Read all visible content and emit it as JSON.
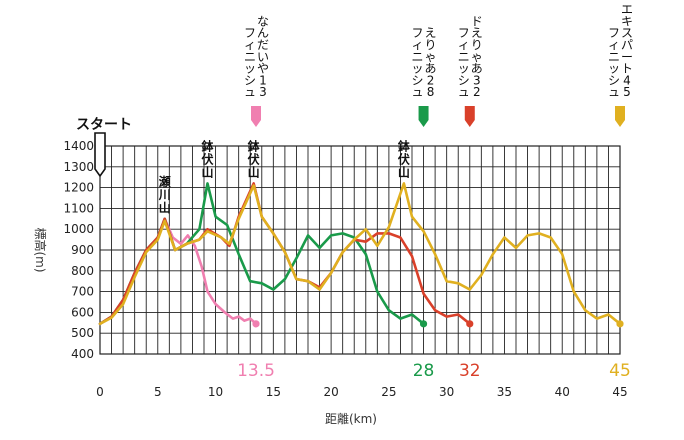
{
  "chart_data": {
    "type": "line",
    "xlabel": "距離(km)",
    "ylabel": "標高(m)",
    "xlim": [
      0,
      45
    ],
    "ylim": [
      400,
      1400
    ],
    "x_ticks": [
      "0",
      "5",
      "10",
      "15",
      "20",
      "25",
      "30",
      "35",
      "40",
      "45"
    ],
    "y_ticks": [
      "400",
      "500",
      "600",
      "700",
      "800",
      "900",
      "1000",
      "1100",
      "1200",
      "1300",
      "1400"
    ],
    "grid": true,
    "start_label": "スタート",
    "peaks": [
      {
        "label": "瀬川山",
        "x": 5.6,
        "y": 1050
      },
      {
        "label": "鉢伏山",
        "x": 9.3,
        "y": 1220
      },
      {
        "label": "鉢伏山",
        "x": 13.3,
        "y": 1220
      },
      {
        "label": "鉢伏山",
        "x": 26.3,
        "y": 1220
      }
    ],
    "series": [
      {
        "name": "なんだいや13",
        "finish_label": "フィニッシュ",
        "end_label": "13.5",
        "color": "#f07fb0",
        "points": [
          [
            0,
            545
          ],
          [
            1,
            580
          ],
          [
            2,
            660
          ],
          [
            3,
            790
          ],
          [
            4,
            900
          ],
          [
            5,
            960
          ],
          [
            5.6,
            1050
          ],
          [
            6.3,
            960
          ],
          [
            7,
            930
          ],
          [
            7.6,
            970
          ],
          [
            8.2,
            920
          ],
          [
            8.8,
            820
          ],
          [
            9.3,
            700
          ],
          [
            10,
            640
          ],
          [
            10.8,
            600
          ],
          [
            11.5,
            570
          ],
          [
            12,
            580
          ],
          [
            12.5,
            560
          ],
          [
            13,
            570
          ],
          [
            13.5,
            545
          ]
        ]
      },
      {
        "name": "えりゃあ28",
        "finish_label": "フィニッシュ",
        "end_label": "28",
        "color": "#1a9a4a",
        "points": [
          [
            0,
            545
          ],
          [
            1,
            580
          ],
          [
            2,
            660
          ],
          [
            3,
            790
          ],
          [
            4,
            900
          ],
          [
            5,
            960
          ],
          [
            5.6,
            1050
          ],
          [
            6.5,
            900
          ],
          [
            7.5,
            930
          ],
          [
            8.6,
            1000
          ],
          [
            9.3,
            1220
          ],
          [
            10,
            1060
          ],
          [
            11,
            1020
          ],
          [
            12,
            880
          ],
          [
            13,
            750
          ],
          [
            14,
            740
          ],
          [
            15,
            710
          ],
          [
            16,
            760
          ],
          [
            17,
            860
          ],
          [
            18,
            970
          ],
          [
            19,
            910
          ],
          [
            20,
            970
          ],
          [
            21,
            980
          ],
          [
            22,
            960
          ],
          [
            23,
            880
          ],
          [
            24,
            700
          ],
          [
            25,
            610
          ],
          [
            26,
            570
          ],
          [
            27,
            590
          ],
          [
            28,
            545
          ]
        ]
      },
      {
        "name": "ドえりゃあ32",
        "finish_label": "フィニッシュ",
        "end_label": "32",
        "color": "#d9402a",
        "points": [
          [
            0,
            545
          ],
          [
            1,
            580
          ],
          [
            2,
            660
          ],
          [
            3,
            790
          ],
          [
            4,
            900
          ],
          [
            5,
            960
          ],
          [
            5.6,
            1050
          ],
          [
            6.5,
            900
          ],
          [
            7.5,
            930
          ],
          [
            8.6,
            950
          ],
          [
            9.3,
            1000
          ],
          [
            10.5,
            960
          ],
          [
            11.2,
            920
          ],
          [
            12,
            1060
          ],
          [
            13.3,
            1220
          ],
          [
            14,
            1060
          ],
          [
            15,
            980
          ],
          [
            16,
            890
          ],
          [
            17,
            760
          ],
          [
            18,
            750
          ],
          [
            19,
            720
          ],
          [
            20,
            790
          ],
          [
            21,
            890
          ],
          [
            22,
            950
          ],
          [
            23,
            940
          ],
          [
            24,
            980
          ],
          [
            25,
            980
          ],
          [
            26,
            960
          ],
          [
            27,
            870
          ],
          [
            28,
            690
          ],
          [
            29,
            610
          ],
          [
            30,
            580
          ],
          [
            31,
            590
          ],
          [
            32,
            545
          ]
        ]
      },
      {
        "name": "エキスパート45",
        "finish_label": "フィニッシュ",
        "end_label": "45",
        "color": "#e0b020",
        "points": [
          [
            0,
            545
          ],
          [
            1,
            575
          ],
          [
            2,
            640
          ],
          [
            3,
            770
          ],
          [
            4,
            890
          ],
          [
            5,
            950
          ],
          [
            5.6,
            1040
          ],
          [
            6.5,
            900
          ],
          [
            7.5,
            930
          ],
          [
            8.6,
            950
          ],
          [
            9.3,
            990
          ],
          [
            10.5,
            960
          ],
          [
            11.2,
            930
          ],
          [
            12,
            1050
          ],
          [
            13.3,
            1210
          ],
          [
            14,
            1060
          ],
          [
            15,
            980
          ],
          [
            16,
            890
          ],
          [
            17,
            760
          ],
          [
            18,
            750
          ],
          [
            19,
            710
          ],
          [
            20,
            790
          ],
          [
            21,
            890
          ],
          [
            22,
            950
          ],
          [
            23,
            1000
          ],
          [
            24,
            920
          ],
          [
            25,
            1010
          ],
          [
            26.3,
            1220
          ],
          [
            27,
            1060
          ],
          [
            28,
            990
          ],
          [
            29,
            880
          ],
          [
            30,
            750
          ],
          [
            31,
            740
          ],
          [
            32,
            710
          ],
          [
            33,
            780
          ],
          [
            34,
            880
          ],
          [
            35,
            960
          ],
          [
            36,
            910
          ],
          [
            37,
            970
          ],
          [
            38,
            980
          ],
          [
            39,
            960
          ],
          [
            40,
            880
          ],
          [
            41,
            700
          ],
          [
            42,
            610
          ],
          [
            43,
            570
          ],
          [
            44,
            590
          ],
          [
            45,
            545
          ]
        ]
      }
    ]
  }
}
